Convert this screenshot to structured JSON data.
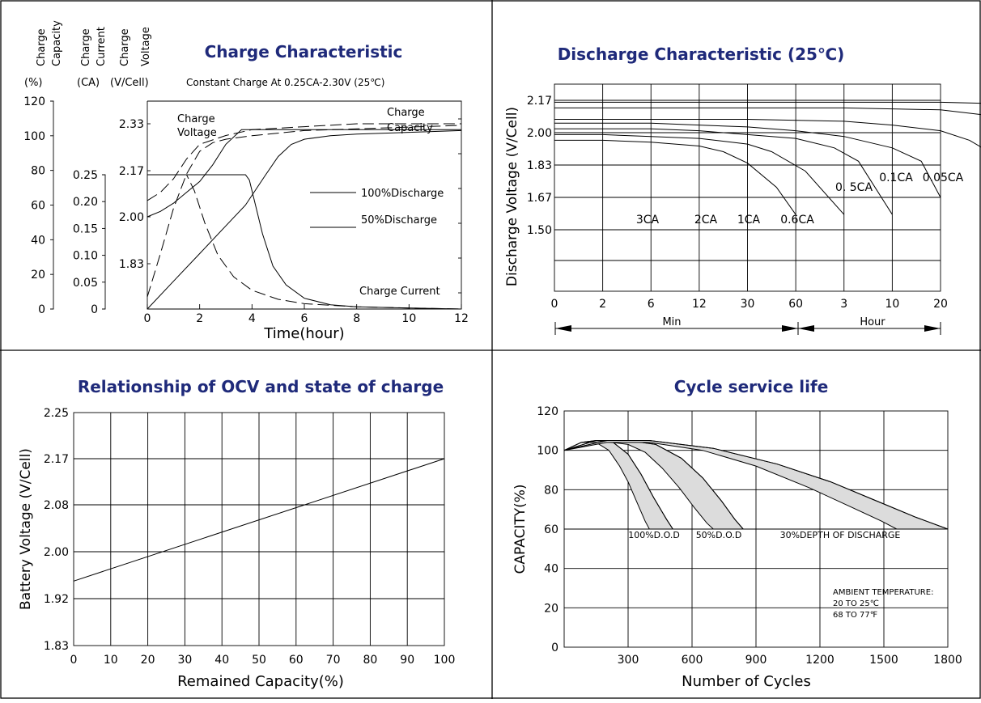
{
  "colors": {
    "title": "#1f2a7a",
    "band_fill": "#dcdcdc",
    "line": "#000000"
  },
  "chart_data": [
    {
      "type": "line",
      "title": "Charge Characteristic",
      "subtitle": "Constant Charge At 0.25CA-2.30V  (25℃)",
      "xlabel": "Time(hour)",
      "xlim": [
        0,
        12
      ],
      "xticks": [
        "0",
        "2",
        "4",
        "6",
        "8",
        "10",
        "12"
      ],
      "axes": [
        {
          "name": "Charge Capacity",
          "label_lines": [
            "Charge",
            "Capacity"
          ],
          "unit": "(%)",
          "ylim": [
            0,
            120
          ],
          "ticks": [
            "0",
            "20",
            "40",
            "60",
            "80",
            "100",
            "120"
          ]
        },
        {
          "name": "Charge Current",
          "label_lines": [
            "Charge",
            "Current"
          ],
          "unit": "(CA)",
          "ylim": [
            0,
            0.25
          ],
          "ticks": [
            "0",
            "0.05",
            "0.10",
            "0.15",
            "0.20",
            "0.25"
          ]
        },
        {
          "name": "Charge Voltage",
          "label_lines": [
            "Charge",
            "Voltage"
          ],
          "unit": "(V/Cell)",
          "ticks": [
            "1.83",
            "2.00",
            "2.17",
            "2.33"
          ]
        }
      ],
      "legend": [
        "100%Discharge",
        "50%Discharge"
      ],
      "annotations": [
        "Charge Voltage",
        "Charge Capacity",
        "Charge Current"
      ],
      "series": [
        {
          "name": "Charge Voltage",
          "discharge": "100%Discharge",
          "x": [
            0,
            0.5,
            1,
            1.5,
            2,
            2.5,
            3,
            3.6,
            4,
            6,
            8,
            10,
            12
          ],
          "values": [
            2.0,
            2.02,
            2.05,
            2.09,
            2.13,
            2.19,
            2.26,
            2.31,
            2.31,
            2.31,
            2.31,
            2.31,
            2.31
          ]
        },
        {
          "name": "Charge Voltage",
          "discharge": "50%Discharge",
          "x": [
            0,
            0.5,
            1,
            1.5,
            2,
            3,
            4,
            6,
            8,
            10,
            12
          ],
          "values": [
            2.06,
            2.09,
            2.14,
            2.21,
            2.26,
            2.29,
            2.31,
            2.32,
            2.33,
            2.34,
            2.35
          ]
        },
        {
          "name": "Charge Current",
          "discharge": "100%Discharge",
          "x": [
            0,
            3.75,
            3.9,
            4.1,
            4.4,
            4.8,
            5.3,
            6,
            7,
            8,
            10,
            12
          ],
          "values": [
            0.25,
            0.25,
            0.24,
            0.2,
            0.14,
            0.08,
            0.045,
            0.02,
            0.008,
            0.004,
            0.002,
            0.0
          ]
        },
        {
          "name": "Charge Current",
          "discharge": "50%Discharge",
          "x": [
            0,
            1.5,
            1.8,
            2.2,
            2.7,
            3.3,
            4,
            5,
            6,
            8,
            10,
            12
          ],
          "values": [
            0.25,
            0.25,
            0.22,
            0.16,
            0.1,
            0.06,
            0.035,
            0.018,
            0.01,
            0.004,
            0.002,
            0.0
          ]
        },
        {
          "name": "Charge Capacity",
          "discharge": "100%Discharge",
          "x": [
            0,
            1,
            2,
            3,
            3.75,
            4.5,
            5,
            5.5,
            6,
            7,
            8,
            10,
            12
          ],
          "values": [
            0,
            16,
            32,
            48,
            60,
            77,
            88,
            95,
            98,
            100,
            101,
            102,
            103
          ]
        },
        {
          "name": "Charge Capacity",
          "discharge": "50%Discharge",
          "x": [
            0,
            0.5,
            1,
            1.5,
            2,
            2.5,
            3,
            4,
            6,
            8,
            10,
            12
          ],
          "values": [
            7,
            32,
            58,
            78,
            91,
            96,
            98,
            100,
            103,
            104,
            105,
            106
          ]
        }
      ]
    },
    {
      "type": "line",
      "title": "Discharge Characteristic  (25℃)",
      "ylabel": "Discharge Voltage (V/Cell)",
      "yticks": [
        "1.50",
        "1.67",
        "1.83",
        "2.00",
        "2.17"
      ],
      "xticks": [
        "0",
        "2",
        "6",
        "12",
        "30",
        "60",
        "3",
        "10",
        "20"
      ],
      "xgroups": [
        "Min",
        "Hour"
      ],
      "series": [
        {
          "name": "3CA",
          "x": [
            0,
            1,
            2,
            3,
            3.5,
            4,
            4.6,
            5
          ],
          "values": [
            1.96,
            1.96,
            1.95,
            1.93,
            1.9,
            1.84,
            1.72,
            1.58
          ]
        },
        {
          "name": "2CA",
          "x": [
            0,
            1,
            2,
            3,
            4,
            4.5,
            5.2,
            6
          ],
          "values": [
            1.99,
            1.99,
            1.98,
            1.97,
            1.94,
            1.9,
            1.8,
            1.58
          ]
        },
        {
          "name": "1CA",
          "x": [
            0,
            1,
            2,
            3,
            4,
            5,
            5.8,
            6.3,
            7
          ],
          "values": [
            2.02,
            2.02,
            2.02,
            2.01,
            1.99,
            1.97,
            1.92,
            1.85,
            1.58
          ]
        },
        {
          "name": "0.6CA",
          "x": [
            0,
            1,
            2,
            3,
            4,
            5,
            6,
            7,
            7.6,
            8
          ],
          "values": [
            2.05,
            2.05,
            2.05,
            2.04,
            2.03,
            2.01,
            1.98,
            1.92,
            1.85,
            1.67
          ]
        },
        {
          "name": "0.  5CA",
          "x": [
            0,
            2,
            4,
            6,
            7,
            8,
            8.6,
            9,
            9.2
          ],
          "values": [
            2.07,
            2.07,
            2.07,
            2.06,
            2.04,
            2.01,
            1.96,
            1.9,
            1.79
          ]
        },
        {
          "name": "0.1CA",
          "x": [
            0,
            2,
            4,
            6,
            8,
            9,
            9.7,
            10,
            10.2
          ],
          "values": [
            2.13,
            2.13,
            2.13,
            2.13,
            2.12,
            2.09,
            2.03,
            1.95,
            1.85
          ]
        },
        {
          "name": "0.05CA",
          "x": [
            0,
            2,
            4,
            6,
            8,
            9.5,
            10.3,
            10.8,
            11
          ],
          "values": [
            2.16,
            2.16,
            2.16,
            2.16,
            2.16,
            2.15,
            2.1,
            2.0,
            1.83
          ]
        }
      ]
    },
    {
      "type": "line",
      "title": "Relationship of OCV and state of charge",
      "xlabel": "Remained Capacity(%)",
      "ylabel": "Battery Voltage (V/Cell)",
      "xlim": [
        0,
        100
      ],
      "xticks": [
        "0",
        "10",
        "20",
        "30",
        "40",
        "50",
        "60",
        "70",
        "80",
        "90",
        "100"
      ],
      "yticks": [
        "1.83",
        "1.92",
        "2.00",
        "2.08",
        "2.17",
        "2.25"
      ],
      "series": [
        {
          "name": "OCV",
          "x": [
            0,
            100
          ],
          "values": [
            1.95,
            2.17
          ]
        }
      ]
    },
    {
      "type": "area",
      "title": "Cycle service life",
      "xlabel": "Number of Cycles",
      "ylabel": "CAPACITY(%)",
      "xlim": [
        0,
        1800
      ],
      "ylim": [
        0,
        120
      ],
      "xticks": [
        "300",
        "600",
        "900",
        "1200",
        "1500",
        "1800"
      ],
      "yticks": [
        "0",
        "20",
        "40",
        "60",
        "80",
        "100",
        "120"
      ],
      "annotation_lines": [
        "AMBIENT TEMPERATURE:",
        "20 TO 25℃",
        "68 TO 77℉"
      ],
      "series": [
        {
          "name": "100%D.O.D",
          "upper": {
            "x": [
              0,
              80,
              150,
              230,
              300,
              360,
              420,
              480,
              510
            ],
            "values": [
              100,
              104,
              105,
              104,
              98,
              88,
              76,
              65,
              60
            ]
          },
          "lower": {
            "x": [
              0,
              80,
              150,
              210,
              260,
              300,
              340,
              380,
              400
            ],
            "values": [
              100,
              104,
              104,
              100,
              92,
              84,
              74,
              64,
              60
            ]
          }
        },
        {
          "name": "50%D.O.D",
          "upper": {
            "x": [
              0,
              150,
              300,
              430,
              550,
              650,
              740,
              800,
              840
            ],
            "values": [
              100,
              105,
              105,
              103,
              96,
              86,
              74,
              65,
              60
            ]
          },
          "lower": {
            "x": [
              0,
              150,
              300,
              380,
              460,
              540,
              610,
              670,
              700
            ],
            "values": [
              100,
              105,
              103,
              99,
              91,
              81,
              71,
              63,
              60
            ]
          }
        },
        {
          "name": "30%DEPTH OF DISCHARGE",
          "upper": {
            "x": [
              0,
              200,
              400,
              700,
              1000,
              1250,
              1450,
              1650,
              1800
            ],
            "values": [
              100,
              105,
              105,
              101,
              93,
              84,
              75,
              66,
              60
            ]
          },
          "lower": {
            "x": [
              0,
              200,
              400,
              650,
              900,
              1150,
              1350,
              1490,
              1560
            ],
            "values": [
              100,
              104,
              104,
              100,
              92,
              81,
              71,
              64,
              60
            ]
          }
        }
      ]
    }
  ]
}
